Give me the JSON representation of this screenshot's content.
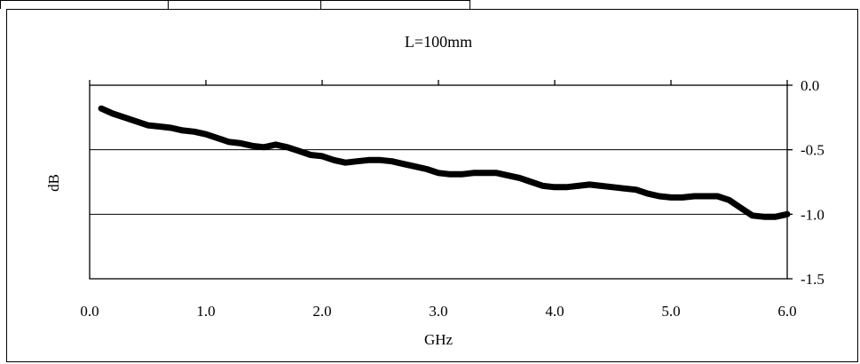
{
  "chart_data": {
    "type": "line",
    "title": "L=100mm",
    "xlabel": "GHz",
    "ylabel": "dB",
    "xlim": [
      0.0,
      6.0
    ],
    "ylim": [
      -1.5,
      0.0
    ],
    "xticks": [
      "0.0",
      "1.0",
      "2.0",
      "3.0",
      "4.0",
      "5.0",
      "6.0"
    ],
    "yticks": [
      "0.0",
      "-0.5",
      "-1.0",
      "-1.5"
    ],
    "grid": "horizontal",
    "y_axis_side": "right",
    "series": [
      {
        "color": "#000000",
        "x": [
          0.1,
          0.2,
          0.3,
          0.4,
          0.5,
          0.6,
          0.7,
          0.8,
          0.9,
          1.0,
          1.1,
          1.2,
          1.3,
          1.4,
          1.5,
          1.6,
          1.7,
          1.8,
          1.9,
          2.0,
          2.1,
          2.2,
          2.3,
          2.4,
          2.5,
          2.6,
          2.7,
          2.8,
          2.9,
          3.0,
          3.1,
          3.2,
          3.3,
          3.4,
          3.5,
          3.6,
          3.7,
          3.8,
          3.9,
          4.0,
          4.1,
          4.2,
          4.3,
          4.4,
          4.5,
          4.6,
          4.7,
          4.8,
          4.9,
          5.0,
          5.1,
          5.2,
          5.3,
          5.4,
          5.5,
          5.6,
          5.7,
          5.8,
          5.9,
          6.0
        ],
        "y": [
          -0.18,
          -0.22,
          -0.25,
          -0.28,
          -0.31,
          -0.32,
          -0.33,
          -0.35,
          -0.36,
          -0.38,
          -0.41,
          -0.44,
          -0.45,
          -0.47,
          -0.48,
          -0.46,
          -0.48,
          -0.51,
          -0.54,
          -0.55,
          -0.58,
          -0.6,
          -0.59,
          -0.58,
          -0.58,
          -0.59,
          -0.61,
          -0.63,
          -0.65,
          -0.68,
          -0.69,
          -0.69,
          -0.68,
          -0.68,
          -0.68,
          -0.7,
          -0.72,
          -0.75,
          -0.78,
          -0.79,
          -0.79,
          -0.78,
          -0.77,
          -0.78,
          -0.79,
          -0.8,
          -0.81,
          -0.84,
          -0.86,
          -0.87,
          -0.87,
          -0.86,
          -0.86,
          -0.86,
          -0.89,
          -0.95,
          -1.01,
          -1.02,
          -1.02,
          -1.0
        ]
      }
    ]
  }
}
